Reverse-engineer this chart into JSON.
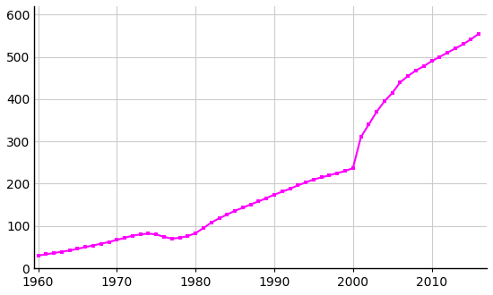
{
  "years": [
    1960,
    1961,
    1962,
    1963,
    1964,
    1965,
    1966,
    1967,
    1968,
    1969,
    1970,
    1971,
    1972,
    1973,
    1974,
    1975,
    1976,
    1977,
    1978,
    1979,
    1980,
    1981,
    1982,
    1983,
    1984,
    1985,
    1986,
    1987,
    1988,
    1989,
    1990,
    1991,
    1992,
    1993,
    1994,
    1995,
    1996,
    1997,
    1998,
    1999,
    2000,
    2001,
    2002,
    2003,
    2004,
    2005,
    2006,
    2007,
    2008,
    2009,
    2010,
    2011,
    2012,
    2013,
    2014,
    2015,
    2016
  ],
  "population": [
    30,
    33,
    36,
    39,
    42,
    46,
    50,
    54,
    58,
    62,
    67,
    72,
    77,
    80,
    82,
    80,
    74,
    70,
    72,
    76,
    83,
    95,
    108,
    118,
    127,
    136,
    143,
    151,
    158,
    166,
    174,
    181,
    188,
    196,
    203,
    210,
    215,
    220,
    225,
    230,
    237,
    310,
    340,
    370,
    395,
    415,
    440,
    455,
    468,
    478,
    490,
    500,
    510,
    520,
    530,
    542,
    555
  ],
  "line_color": "#FF00FF",
  "marker": "s",
  "markersize": 3.5,
  "linewidth": 1.5,
  "xlim": [
    1959.5,
    2017
  ],
  "ylim": [
    0,
    620
  ],
  "yticks": [
    0,
    100,
    200,
    300,
    400,
    500,
    600
  ],
  "xticks": [
    1960,
    1970,
    1980,
    1990,
    2000,
    2010
  ],
  "grid_color": "#cccccc",
  "background_color": "#ffffff"
}
